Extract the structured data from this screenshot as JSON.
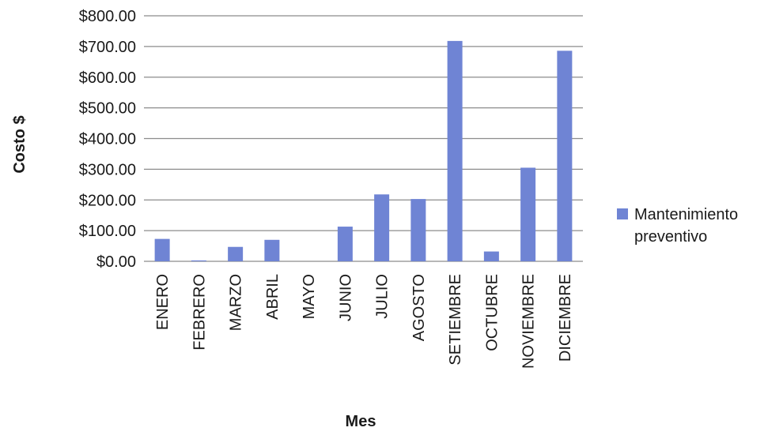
{
  "chart_data": {
    "type": "bar",
    "categories": [
      "ENERO",
      "FEBRERO",
      "MARZO",
      "ABRIL",
      "MAYO",
      "JUNIO",
      "JULIO",
      "AGOSTO",
      "SETIEMBRE",
      "OCTUBRE",
      "NOVIEMBRE",
      "DICIEMBRE"
    ],
    "series": [
      {
        "name_lines": [
          "Mantenimiento",
          "preventivo"
        ],
        "color": "#6f84d4",
        "values": [
          73,
          3,
          47,
          70,
          0,
          113,
          218,
          203,
          718,
          32,
          305,
          686
        ]
      }
    ],
    "xlabel": "Mes",
    "ylabel": "Costo $",
    "ylim": [
      0,
      800
    ],
    "yticks": [
      "$0.00",
      "$100.00",
      "$200.00",
      "$300.00",
      "$400.00",
      "$500.00",
      "$600.00",
      "$700.00",
      "$800.00"
    ],
    "grid": "horizontal",
    "legend": "right",
    "colors": {
      "grid": "#8c8c8c",
      "text": "#1a1a1a"
    }
  }
}
